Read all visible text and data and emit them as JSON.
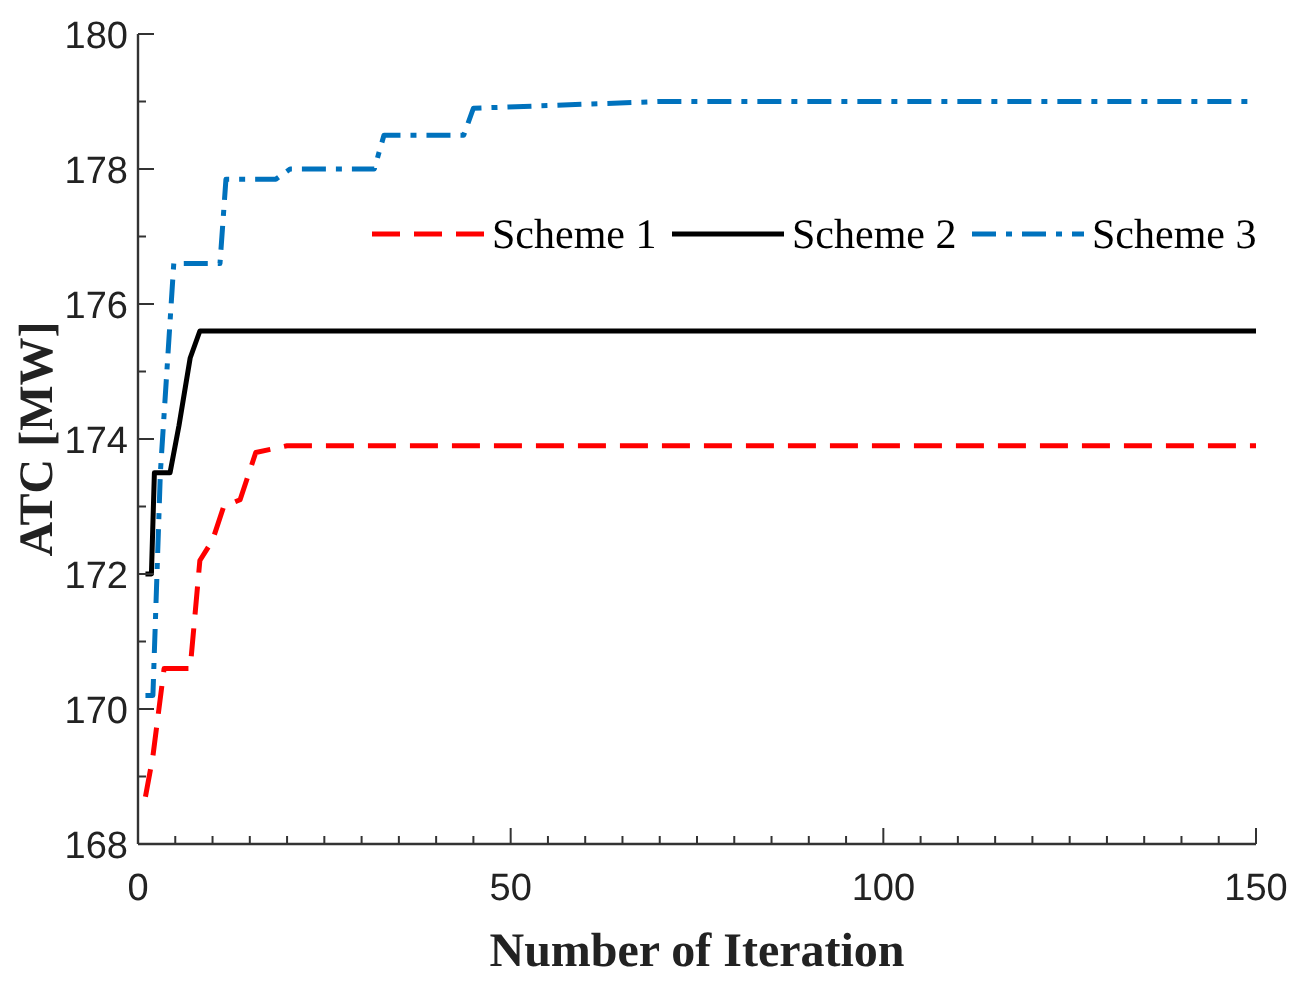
{
  "chart_data": {
    "type": "line",
    "xlabel": "Number of Iteration",
    "ylabel": "ATC [MW]",
    "xlim": [
      0,
      150
    ],
    "ylim": [
      168,
      180
    ],
    "xticks": [
      0,
      {
        "value": 5,
        "label": null
      },
      {
        "value": 10,
        "label": null
      },
      {
        "value": 15,
        "label": null
      },
      {
        "value": 20,
        "label": null
      },
      {
        "value": 25,
        "label": null
      },
      {
        "value": 30,
        "label": null
      },
      {
        "value": 35,
        "label": null
      },
      {
        "value": 40,
        "label": null
      },
      {
        "value": 45,
        "label": null
      },
      50,
      {
        "value": 55,
        "label": null
      },
      {
        "value": 60,
        "label": null
      },
      {
        "value": 65,
        "label": null
      },
      {
        "value": 70,
        "label": null
      },
      {
        "value": 75,
        "label": null
      },
      {
        "value": 80,
        "label": null
      },
      {
        "value": 85,
        "label": null
      },
      {
        "value": 90,
        "label": null
      },
      {
        "value": 95,
        "label": null
      },
      100,
      {
        "value": 105,
        "label": null
      },
      {
        "value": 110,
        "label": null
      },
      {
        "value": 115,
        "label": null
      },
      {
        "value": 120,
        "label": null
      },
      {
        "value": 125,
        "label": null
      },
      {
        "value": 130,
        "label": null
      },
      {
        "value": 135,
        "label": null
      },
      {
        "value": 140,
        "label": null
      },
      {
        "value": 145,
        "label": null
      },
      150
    ],
    "yticks": [
      168,
      {
        "value": 169,
        "label": null
      },
      170,
      {
        "value": 171,
        "label": null
      },
      172,
      {
        "value": 173,
        "label": null
      },
      174,
      {
        "value": 175,
        "label": null
      },
      176,
      {
        "value": 177,
        "label": null
      },
      178,
      {
        "value": 179,
        "label": null
      },
      180
    ],
    "grid": false,
    "legend": "top right",
    "series": [
      {
        "name": "Scheme 1",
        "color": "#ff0000",
        "line_style": "dashed",
        "x": [
          1,
          2,
          3.5,
          7,
          8.3,
          10,
          11.5,
          13.7,
          15.8,
          20,
          150
        ],
        "values": [
          168.7,
          169.3,
          170.6,
          170.6,
          172.2,
          172.5,
          173.0,
          173.1,
          173.8,
          173.9,
          173.9
        ]
      },
      {
        "name": "Scheme 2",
        "color": "#000000",
        "line_style": "solid",
        "x": [
          1,
          1.8,
          2.2,
          4.3,
          5.5,
          7,
          8.3,
          150
        ],
        "values": [
          172.0,
          172.0,
          173.5,
          173.5,
          174.2,
          175.2,
          175.6,
          175.6
        ]
      },
      {
        "name": "Scheme 3",
        "color": "#0072bd",
        "line_style": "dashdot",
        "x": [
          1,
          2,
          3,
          4.8,
          11,
          11.8,
          18.5,
          20.4,
          31.7,
          33,
          43.7,
          45,
          70,
          150
        ],
        "values": [
          170.2,
          170.2,
          173.5,
          176.6,
          176.6,
          177.85,
          177.85,
          178.0,
          178.0,
          178.5,
          178.5,
          178.9,
          179.0,
          179.0
        ]
      }
    ]
  }
}
